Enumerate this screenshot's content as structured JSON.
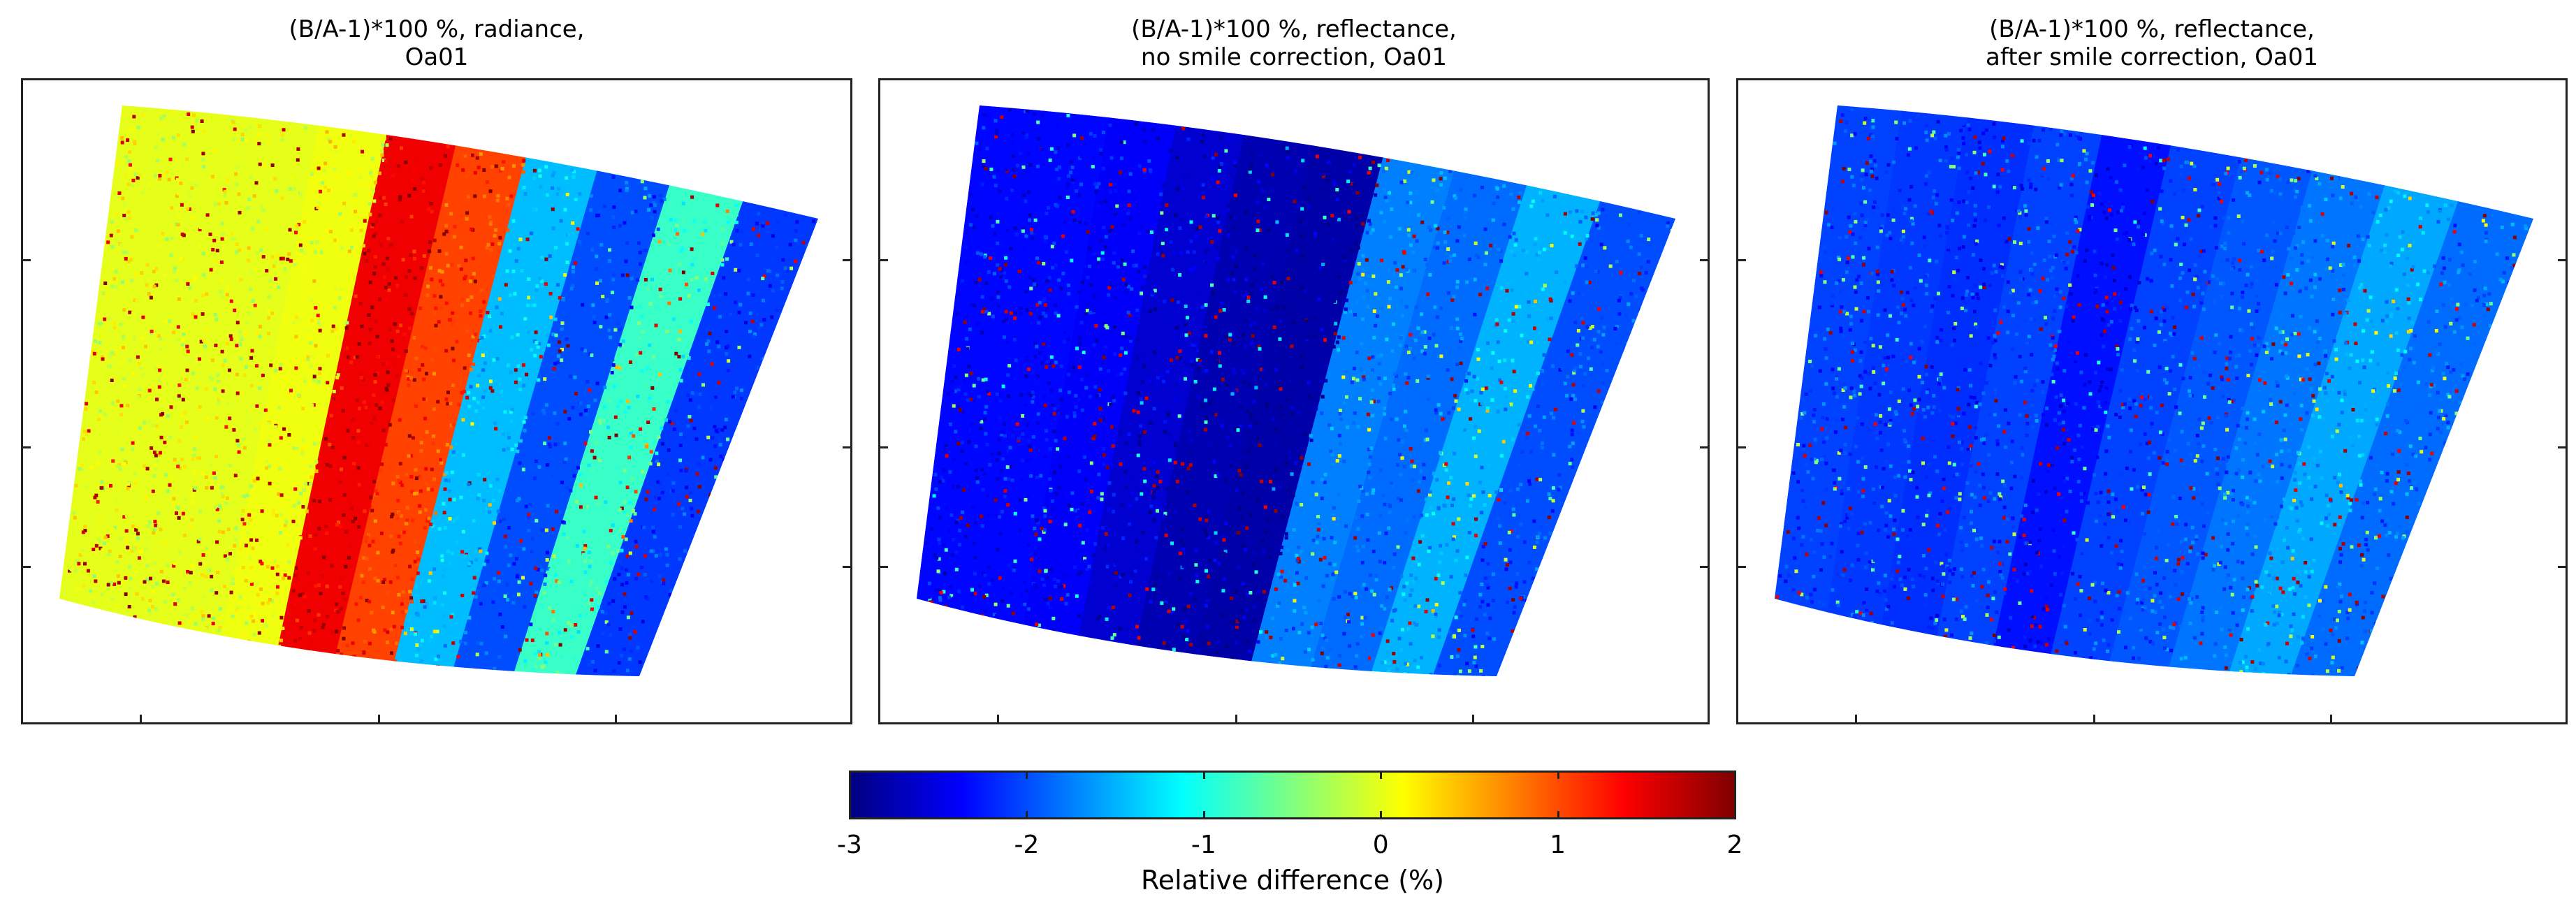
{
  "chart_data": {
    "type": "heatmap",
    "panels": [
      {
        "title_line1": "(B/A-1)*100 %, radiance,",
        "title_line2": "Oa01",
        "stripes": [
          0.0,
          0.0,
          0.0,
          0.05,
          1.45,
          1.05,
          -1.45,
          -2.0,
          -0.85,
          -2.1
        ]
      },
      {
        "title_line1": "(B/A-1)*100 %, reflectance,",
        "title_line2": "no smile correction, Oa01",
        "stripes": [
          -2.35,
          -2.35,
          -2.4,
          -2.6,
          -2.75,
          -2.8,
          -1.75,
          -1.85,
          -1.5,
          -2.0
        ]
      },
      {
        "title_line1": "(B/A-1)*100 %, reflectance,",
        "title_line2": "after smile correction, Oa01",
        "stripes": [
          -2.05,
          -2.1,
          -2.15,
          -2.05,
          -2.3,
          -2.05,
          -1.95,
          -1.8,
          -1.55,
          -1.85
        ]
      }
    ],
    "colorbar": {
      "ticks": [
        "-3",
        "-2",
        "-1",
        "0",
        "1",
        "2"
      ],
      "range": [
        -3,
        2
      ],
      "label": "Relative difference (%)",
      "colormap": "jet"
    }
  }
}
